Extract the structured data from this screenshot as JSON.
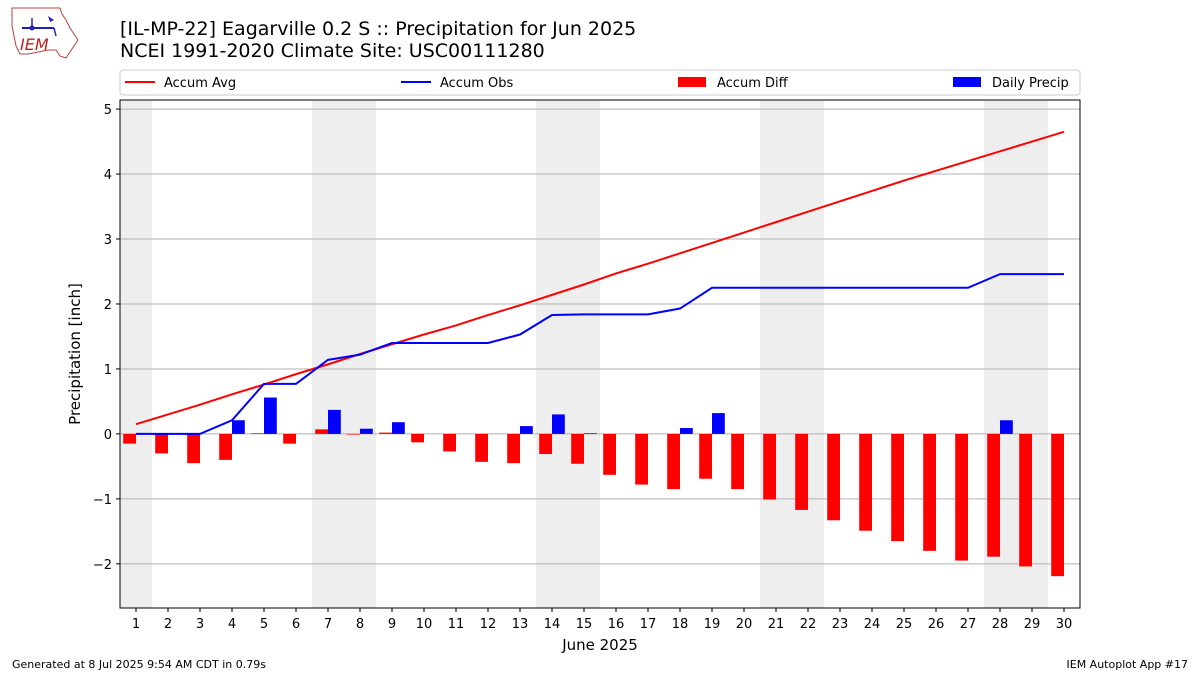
{
  "header": {
    "title_line1": "[IL-MP-22] Eagarville 0.2 S :: Precipitation for Jun 2025",
    "title_line2": "NCEI 1991-2020 Climate Site: USC00111280",
    "logo_text": "IEM"
  },
  "footer": {
    "left": "Generated at 8 Jul 2025 9:54 AM CDT in 0.79s",
    "right": "IEM Autoplot App #17"
  },
  "colors": {
    "accum_avg": "#ff0000",
    "accum_obs": "#0000ff",
    "accum_diff": "#ff0000",
    "daily_precip": "#0000ff",
    "weekend_shade": "#eeeeee",
    "grid": "#b0b0b0"
  },
  "chart_data": {
    "type": "bar",
    "xlabel": "June 2025",
    "ylabel": "Precipitation [inch]",
    "ylim": [
      -2.68,
      5.14
    ],
    "yticks": [
      -2,
      -1,
      0,
      1,
      2,
      3,
      4,
      5
    ],
    "grid": "horizontal",
    "legend_placement": "top",
    "x": [
      1,
      2,
      3,
      4,
      5,
      6,
      7,
      8,
      9,
      10,
      11,
      12,
      13,
      14,
      15,
      16,
      17,
      18,
      19,
      20,
      21,
      22,
      23,
      24,
      25,
      26,
      27,
      28,
      29,
      30
    ],
    "shaded_weekends": [
      [
        1,
        1
      ],
      [
        7,
        8
      ],
      [
        14,
        15
      ],
      [
        21,
        22
      ],
      [
        28,
        29
      ]
    ],
    "series": [
      {
        "name": "Accum Avg",
        "kind": "line",
        "values": [
          0.15,
          0.3,
          0.45,
          0.61,
          0.76,
          0.92,
          1.07,
          1.23,
          1.38,
          1.53,
          1.67,
          1.83,
          1.98,
          2.14,
          2.3,
          2.47,
          2.62,
          2.78,
          2.94,
          3.1,
          3.26,
          3.42,
          3.58,
          3.74,
          3.9,
          4.05,
          4.2,
          4.35,
          4.5,
          4.65
        ]
      },
      {
        "name": "Accum Obs",
        "kind": "line",
        "values": [
          0.0,
          0.0,
          0.0,
          0.21,
          0.77,
          0.77,
          1.14,
          1.22,
          1.4,
          1.4,
          1.4,
          1.4,
          1.53,
          1.83,
          1.84,
          1.84,
          1.84,
          1.93,
          2.25,
          2.25,
          2.25,
          2.25,
          2.25,
          2.25,
          2.25,
          2.25,
          2.25,
          2.46,
          2.46,
          2.46
        ]
      },
      {
        "name": "Accum Diff",
        "kind": "bar",
        "values": [
          -0.15,
          -0.3,
          -0.45,
          -0.4,
          0.01,
          -0.15,
          0.07,
          -0.01,
          0.02,
          -0.13,
          -0.27,
          -0.43,
          -0.45,
          -0.31,
          -0.46,
          -0.63,
          -0.78,
          -0.85,
          -0.69,
          -0.85,
          -1.01,
          -1.17,
          -1.33,
          -1.49,
          -1.65,
          -1.8,
          -1.95,
          -1.89,
          -2.04,
          -2.19
        ]
      },
      {
        "name": "Daily Precip",
        "kind": "bar",
        "values": [
          0,
          0,
          0,
          0.21,
          0.56,
          0,
          0.37,
          0.08,
          0.18,
          0,
          0,
          0,
          0.12,
          0.3,
          0.01,
          0,
          0,
          0.09,
          0.32,
          0,
          0,
          0,
          0,
          0,
          0,
          0,
          0,
          0.21,
          0,
          0
        ]
      }
    ]
  }
}
